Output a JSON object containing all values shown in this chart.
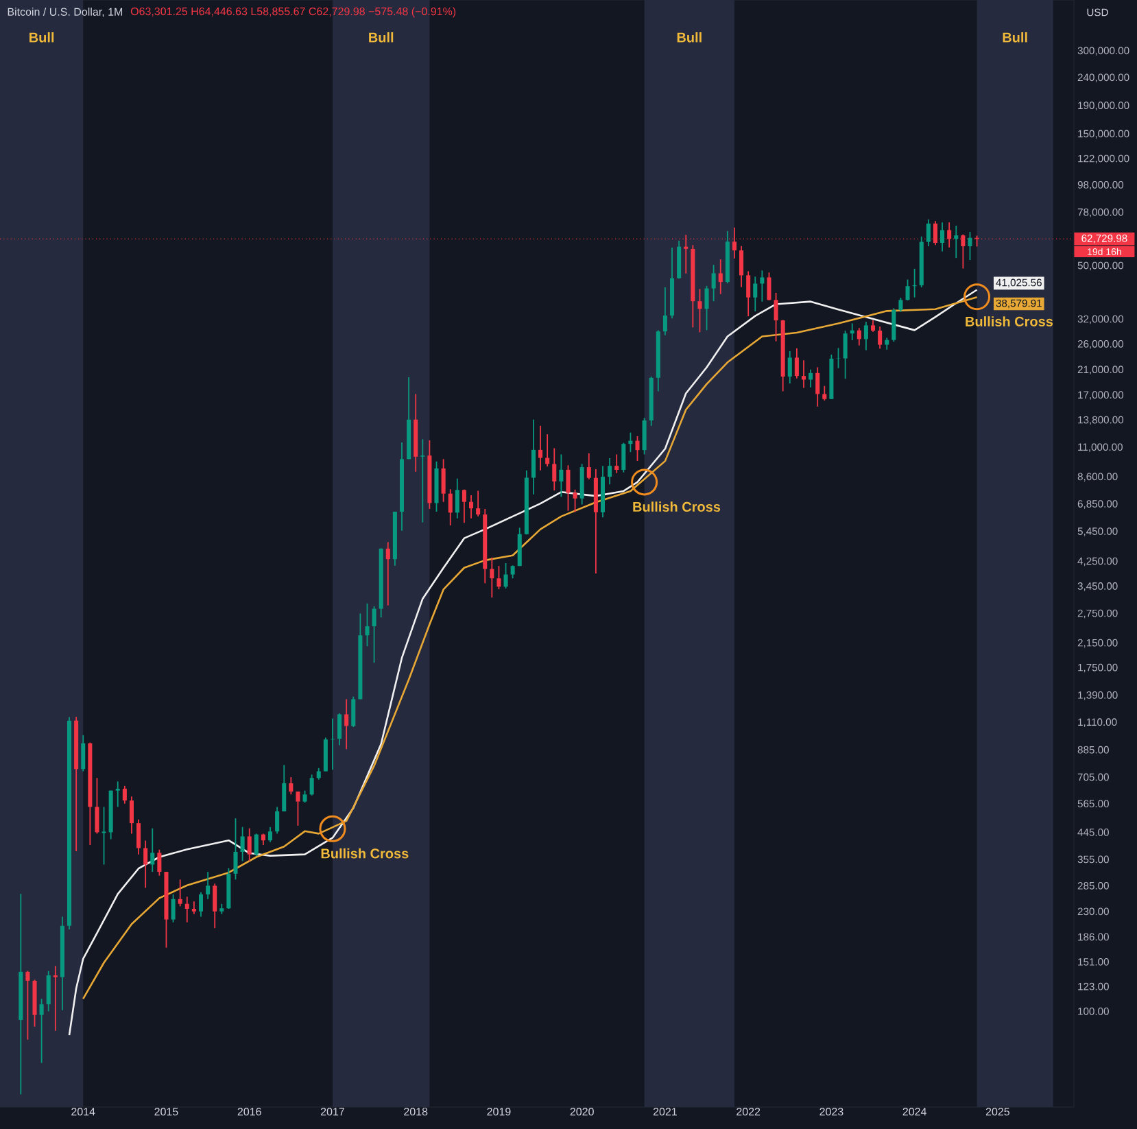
{
  "chart_data": {
    "type": "candlestick",
    "title": "Bitcoin / U.S. Dollar, 1M",
    "subtitle": "O63,301.25 H64,446.63 L58,855.67 C62,729.98 −575.48 (−0.91%)",
    "ylabel": "USD",
    "log": true,
    "xlim": [
      "2013-01",
      "2025-12"
    ],
    "ylim": [
      45,
      460000
    ],
    "xticks": [
      {
        "value": "2014-01",
        "label": "2014"
      },
      {
        "value": "2015-01",
        "label": "2015"
      },
      {
        "value": "2016-01",
        "label": "2016"
      },
      {
        "value": "2017-01",
        "label": "2017"
      },
      {
        "value": "2018-01",
        "label": "2018"
      },
      {
        "value": "2019-01",
        "label": "2019"
      },
      {
        "value": "2020-01",
        "label": "2020"
      },
      {
        "value": "2021-01",
        "label": "2021"
      },
      {
        "value": "2022-01",
        "label": "2022"
      },
      {
        "value": "2023-01",
        "label": "2023"
      },
      {
        "value": "2024-01",
        "label": "2024"
      },
      {
        "value": "2025-01",
        "label": "2025"
      }
    ],
    "yticks": [
      {
        "value": 100,
        "label": "100.00"
      },
      {
        "value": 123,
        "label": "123.00"
      },
      {
        "value": 151,
        "label": "151.00"
      },
      {
        "value": 186,
        "label": "186.00"
      },
      {
        "value": 230,
        "label": "230.00"
      },
      {
        "value": 285,
        "label": "285.00"
      },
      {
        "value": 355,
        "label": "355.00"
      },
      {
        "value": 445,
        "label": "445.00"
      },
      {
        "value": 565,
        "label": "565.00"
      },
      {
        "value": 705,
        "label": "705.00"
      },
      {
        "value": 885,
        "label": "885.00"
      },
      {
        "value": 1110,
        "label": "1,110.00"
      },
      {
        "value": 1390,
        "label": "1,390.00"
      },
      {
        "value": 1750,
        "label": "1,750.00"
      },
      {
        "value": 2150,
        "label": "2,150.00"
      },
      {
        "value": 2750,
        "label": "2,750.00"
      },
      {
        "value": 3450,
        "label": "3,450.00"
      },
      {
        "value": 4250,
        "label": "4,250.00"
      },
      {
        "value": 5450,
        "label": "5,450.00"
      },
      {
        "value": 6850,
        "label": "6,850.00"
      },
      {
        "value": 8600,
        "label": "8,600.00"
      },
      {
        "value": 11000,
        "label": "11,000.00"
      },
      {
        "value": 13800,
        "label": "13,800.00"
      },
      {
        "value": 17000,
        "label": "17,000.00"
      },
      {
        "value": 21000,
        "label": "21,000.00"
      },
      {
        "value": 26000,
        "label": "26,000.00"
      },
      {
        "value": 32000,
        "label": "32,000.00"
      },
      {
        "value": 50000,
        "label": "50,000.00"
      },
      {
        "value": 78000,
        "label": "78,000.00"
      },
      {
        "value": 98000,
        "label": "98,000.00"
      },
      {
        "value": 122000,
        "label": "122,000.00"
      },
      {
        "value": 150000,
        "label": "150,000.00"
      },
      {
        "value": 190000,
        "label": "190,000.00"
      },
      {
        "value": 240000,
        "label": "240,000.00"
      },
      {
        "value": 300000,
        "label": "300,000.00"
      }
    ],
    "x": [
      "2013-04",
      "2013-05",
      "2013-06",
      "2013-07",
      "2013-08",
      "2013-09",
      "2013-10",
      "2013-11",
      "2013-12",
      "2014-01",
      "2014-02",
      "2014-03",
      "2014-04",
      "2014-05",
      "2014-06",
      "2014-07",
      "2014-08",
      "2014-09",
      "2014-10",
      "2014-11",
      "2014-12",
      "2015-01",
      "2015-02",
      "2015-03",
      "2015-04",
      "2015-05",
      "2015-06",
      "2015-07",
      "2015-08",
      "2015-09",
      "2015-10",
      "2015-11",
      "2015-12",
      "2016-01",
      "2016-02",
      "2016-03",
      "2016-04",
      "2016-05",
      "2016-06",
      "2016-07",
      "2016-08",
      "2016-09",
      "2016-10",
      "2016-11",
      "2016-12",
      "2017-01",
      "2017-02",
      "2017-03",
      "2017-04",
      "2017-05",
      "2017-06",
      "2017-07",
      "2017-08",
      "2017-09",
      "2017-10",
      "2017-11",
      "2017-12",
      "2018-01",
      "2018-02",
      "2018-03",
      "2018-04",
      "2018-05",
      "2018-06",
      "2018-07",
      "2018-08",
      "2018-09",
      "2018-10",
      "2018-11",
      "2018-12",
      "2019-01",
      "2019-02",
      "2019-03",
      "2019-04",
      "2019-05",
      "2019-06",
      "2019-07",
      "2019-08",
      "2019-09",
      "2019-10",
      "2019-11",
      "2019-12",
      "2020-01",
      "2020-02",
      "2020-03",
      "2020-04",
      "2020-05",
      "2020-06",
      "2020-07",
      "2020-08",
      "2020-09",
      "2020-10",
      "2020-11",
      "2020-12",
      "2021-01",
      "2021-02",
      "2021-03",
      "2021-04",
      "2021-05",
      "2021-06",
      "2021-07",
      "2021-08",
      "2021-09",
      "2021-10",
      "2021-11",
      "2021-12",
      "2022-01",
      "2022-02",
      "2022-03",
      "2022-04",
      "2022-05",
      "2022-06",
      "2022-07",
      "2022-08",
      "2022-09",
      "2022-10",
      "2022-11",
      "2022-12",
      "2023-01",
      "2023-02",
      "2023-03",
      "2023-04",
      "2023-05",
      "2023-06",
      "2023-07",
      "2023-08",
      "2023-09",
      "2023-10",
      "2023-11",
      "2023-12",
      "2024-01",
      "2024-02",
      "2024-03",
      "2024-04",
      "2024-05",
      "2024-06",
      "2024-07",
      "2024-08",
      "2024-09",
      "2024-10"
    ],
    "ohlc": [
      [
        93,
        266,
        50,
        139
      ],
      [
        139,
        140,
        79,
        129
      ],
      [
        129,
        130,
        88,
        97
      ],
      [
        97,
        111,
        65,
        106
      ],
      [
        106,
        140,
        100,
        135
      ],
      [
        135,
        146,
        85,
        133
      ],
      [
        133,
        220,
        101,
        204
      ],
      [
        204,
        1163,
        198,
        1129
      ],
      [
        1129,
        1165,
        380,
        754
      ],
      [
        754,
        1000,
        740,
        935
      ],
      [
        935,
        940,
        400,
        550
      ],
      [
        550,
        700,
        440,
        445
      ],
      [
        445,
        550,
        340,
        445
      ],
      [
        445,
        630,
        420,
        630
      ],
      [
        630,
        680,
        550,
        640
      ],
      [
        640,
        655,
        565,
        580
      ],
      [
        580,
        600,
        440,
        480
      ],
      [
        480,
        495,
        370,
        390
      ],
      [
        390,
        415,
        280,
        340
      ],
      [
        340,
        460,
        320,
        375
      ],
      [
        375,
        385,
        310,
        320
      ],
      [
        320,
        320,
        170,
        215
      ],
      [
        215,
        265,
        210,
        255
      ],
      [
        255,
        300,
        240,
        245
      ],
      [
        245,
        260,
        210,
        235
      ],
      [
        235,
        250,
        225,
        230
      ],
      [
        230,
        270,
        220,
        265
      ],
      [
        265,
        320,
        255,
        285
      ],
      [
        285,
        290,
        200,
        230
      ],
      [
        230,
        245,
        225,
        236
      ],
      [
        236,
        330,
        235,
        315
      ],
      [
        315,
        500,
        300,
        378
      ],
      [
        378,
        465,
        350,
        430
      ],
      [
        430,
        460,
        350,
        370
      ],
      [
        370,
        440,
        365,
        437
      ],
      [
        437,
        440,
        400,
        416
      ],
      [
        416,
        465,
        410,
        448
      ],
      [
        448,
        550,
        440,
        530
      ],
      [
        530,
        780,
        530,
        670
      ],
      [
        670,
        705,
        610,
        625
      ],
      [
        625,
        625,
        470,
        575
      ],
      [
        575,
        630,
        570,
        610
      ],
      [
        610,
        720,
        605,
        700
      ],
      [
        700,
        760,
        690,
        740
      ],
      [
        740,
        980,
        740,
        965
      ],
      [
        965,
        1150,
        750,
        970
      ],
      [
        970,
        1200,
        920,
        1190
      ],
      [
        1190,
        1350,
        890,
        1080
      ],
      [
        1080,
        1380,
        1070,
        1350
      ],
      [
        1350,
        2760,
        1350,
        2300
      ],
      [
        2300,
        3000,
        2100,
        2480
      ],
      [
        2480,
        2930,
        1830,
        2870
      ],
      [
        2870,
        4750,
        2670,
        4740
      ],
      [
        4740,
        5000,
        2950,
        4340
      ],
      [
        4340,
        6450,
        4110,
        6450
      ],
      [
        6450,
        11500,
        5500,
        10000
      ],
      [
        10000,
        19800,
        10000,
        13900
      ],
      [
        13900,
        17200,
        9000,
        10200
      ],
      [
        10200,
        11800,
        5900,
        10300
      ],
      [
        10300,
        11700,
        6600,
        6930
      ],
      [
        6930,
        9800,
        6450,
        9250
      ],
      [
        9250,
        10000,
        7000,
        7500
      ],
      [
        7500,
        7780,
        5750,
        6400
      ],
      [
        6400,
        8500,
        6100,
        7730
      ],
      [
        7730,
        7760,
        5880,
        7000
      ],
      [
        7000,
        7400,
        6100,
        6630
      ],
      [
        6630,
        7680,
        6200,
        6300
      ],
      [
        6300,
        6600,
        3550,
        4000
      ],
      [
        4000,
        4400,
        3150,
        3700
      ],
      [
        3700,
        4100,
        3380,
        3450
      ],
      [
        3450,
        4200,
        3400,
        3820
      ],
      [
        3820,
        4120,
        3700,
        4100
      ],
      [
        4100,
        5640,
        4100,
        5350
      ],
      [
        5350,
        9100,
        5330,
        8560
      ],
      [
        8560,
        13900,
        7450,
        10800
      ],
      [
        10800,
        13200,
        9100,
        10100
      ],
      [
        10100,
        12300,
        9400,
        9600
      ],
      [
        9600,
        10950,
        7700,
        8300
      ],
      [
        8300,
        10400,
        7300,
        9150
      ],
      [
        9150,
        9500,
        6500,
        7550
      ],
      [
        7550,
        7750,
        6430,
        7200
      ],
      [
        7200,
        9600,
        6850,
        9350
      ],
      [
        9350,
        10500,
        8450,
        8550
      ],
      [
        8550,
        9200,
        3850,
        6420
      ],
      [
        6420,
        9450,
        6150,
        8630
      ],
      [
        8630,
        10070,
        8100,
        9450
      ],
      [
        9450,
        10400,
        8900,
        9140
      ],
      [
        9140,
        11450,
        8950,
        11350
      ],
      [
        11350,
        12470,
        10600,
        11650
      ],
      [
        11650,
        12100,
        9850,
        10780
      ],
      [
        10780,
        14100,
        10400,
        13800
      ],
      [
        13800,
        19900,
        13200,
        19700
      ],
      [
        19700,
        29300,
        17600,
        29000
      ],
      [
        29000,
        41950,
        28100,
        33100
      ],
      [
        33100,
        58350,
        32300,
        45200
      ],
      [
        45200,
        61800,
        45000,
        58800
      ],
      [
        58800,
        64850,
        47000,
        57700
      ],
      [
        57700,
        59600,
        30000,
        37300
      ],
      [
        37300,
        41300,
        28800,
        35000
      ],
      [
        35000,
        42400,
        29300,
        41500
      ],
      [
        41500,
        50500,
        37300,
        47100
      ],
      [
        47100,
        52900,
        39600,
        43800
      ],
      [
        43800,
        67000,
        43300,
        61300
      ],
      [
        61300,
        69000,
        53300,
        57000
      ],
      [
        57000,
        59100,
        42000,
        46300
      ],
      [
        46300,
        47900,
        32900,
        38500
      ],
      [
        38500,
        45800,
        34300,
        43200
      ],
      [
        43200,
        48200,
        37200,
        45500
      ],
      [
        45500,
        47400,
        37600,
        37700
      ],
      [
        37700,
        40000,
        26700,
        31800
      ],
      [
        31800,
        31900,
        17600,
        19900
      ],
      [
        19900,
        24600,
        18800,
        23300
      ],
      [
        23300,
        25200,
        19600,
        20000
      ],
      [
        20000,
        22800,
        18100,
        19400
      ],
      [
        19400,
        21100,
        18200,
        20500
      ],
      [
        20500,
        21500,
        15500,
        17200
      ],
      [
        17200,
        18400,
        16300,
        16500
      ],
      [
        16500,
        23900,
        16500,
        23100
      ],
      [
        23100,
        25250,
        21350,
        23150
      ],
      [
        23150,
        29200,
        19550,
        28500
      ],
      [
        28500,
        31000,
        26950,
        29250
      ],
      [
        29250,
        29850,
        25800,
        27200
      ],
      [
        27200,
        31400,
        24800,
        30500
      ],
      [
        30500,
        31800,
        28900,
        29200
      ],
      [
        29200,
        30200,
        25100,
        25950
      ],
      [
        25950,
        27500,
        24900,
        27000
      ],
      [
        27000,
        35200,
        26600,
        34650
      ],
      [
        34650,
        38400,
        34100,
        37700
      ],
      [
        37700,
        44700,
        37600,
        42300
      ],
      [
        42300,
        48900,
        38500,
        42600
      ],
      [
        42600,
        64000,
        41900,
        61200
      ],
      [
        61200,
        73800,
        59000,
        71300
      ],
      [
        71300,
        72800,
        59600,
        60700
      ],
      [
        60700,
        72000,
        56500,
        67500
      ],
      [
        67500,
        72000,
        58400,
        62700
      ],
      [
        62700,
        70000,
        53500,
        64600
      ],
      [
        64600,
        65100,
        49000,
        59000
      ],
      [
        59000,
        66500,
        52600,
        63301.25
      ],
      [
        63301.25,
        64446.63,
        58855.67,
        62729.98
      ]
    ],
    "series": [
      {
        "type": "line",
        "color": "#f0f0f0",
        "x": [
          "2013-11",
          "2013-12",
          "2014-01",
          "2014-03",
          "2014-06",
          "2014-09",
          "2014-12",
          "2015-04",
          "2015-10",
          "2016-01",
          "2016-04",
          "2016-09",
          "2017-01",
          "2017-04",
          "2017-08",
          "2017-11",
          "2018-02",
          "2018-05",
          "2018-08",
          "2018-11",
          "2019-03",
          "2019-07",
          "2019-10",
          "2019-12",
          "2020-03",
          "2020-07",
          "2020-09",
          "2021-01",
          "2021-04",
          "2021-07",
          "2021-10",
          "2022-02",
          "2022-05",
          "2022-10",
          "2023-02",
          "2023-06",
          "2024-01",
          "2024-04",
          "2024-07",
          "2024-10"
        ],
        "values": [
          82,
          121,
          155,
          192,
          266,
          329,
          362,
          386,
          416,
          374,
          366,
          370,
          425,
          545,
          929,
          1905,
          3120,
          4035,
          5170,
          5570,
          6200,
          6900,
          7600,
          7500,
          7350,
          7660,
          8250,
          10900,
          17300,
          21500,
          27800,
          33000,
          36400,
          37200,
          34800,
          32700,
          29300,
          32700,
          36700,
          41025.56
        ],
        "value_labels": [
          null,
          null,
          null,
          null,
          null,
          null,
          null,
          null,
          null,
          null,
          null,
          null,
          null,
          null,
          null,
          null,
          null,
          null,
          null,
          null,
          null,
          null,
          null,
          null,
          null,
          null,
          null,
          null,
          null,
          null,
          null,
          null,
          null,
          null,
          null,
          null,
          null,
          null,
          null,
          "41,025.56"
        ]
      },
      {
        "type": "line",
        "color": "#e8a835",
        "x": [
          "2014-01",
          "2014-04",
          "2014-08",
          "2014-12",
          "2015-04",
          "2015-10",
          "2016-02",
          "2016-06",
          "2016-09",
          "2016-11",
          "2017-03",
          "2017-07",
          "2017-12",
          "2018-03",
          "2018-05",
          "2018-08",
          "2018-11",
          "2019-03",
          "2019-07",
          "2019-10",
          "2020-03",
          "2020-08",
          "2021-01",
          "2021-04",
          "2021-07",
          "2021-10",
          "2022-03",
          "2022-08",
          "2023-02",
          "2023-09",
          "2024-04",
          "2024-10"
        ],
        "values": [
          111,
          150,
          207,
          257,
          286,
          318,
          362,
          395,
          449,
          440,
          489,
          775,
          1590,
          2520,
          3370,
          4040,
          4300,
          4480,
          5570,
          6200,
          6980,
          7660,
          9840,
          15100,
          18700,
          22400,
          27800,
          28700,
          31000,
          34400,
          34900,
          38579.91
        ],
        "value_labels": [
          null,
          null,
          null,
          null,
          null,
          null,
          null,
          null,
          null,
          null,
          null,
          null,
          null,
          null,
          null,
          null,
          null,
          null,
          null,
          null,
          null,
          null,
          null,
          null,
          null,
          null,
          null,
          null,
          null,
          null,
          null,
          "38,579.91"
        ]
      }
    ],
    "ref_lines": [
      {
        "axis": "y",
        "value": 62729.98,
        "label": "62,729.98",
        "color": "#f23645",
        "line_style": "dotted"
      }
    ],
    "bands": [
      {
        "axis": "x",
        "from": "2013-01",
        "to": "2014-01",
        "label": "Bull",
        "color": "#262a3e"
      },
      {
        "axis": "x",
        "from": "2017-01",
        "to": "2018-03",
        "label": "Bull",
        "color": "#262a3e"
      },
      {
        "axis": "x",
        "from": "2020-10",
        "to": "2021-11",
        "label": "Bull",
        "color": "#262a3e"
      },
      {
        "axis": "x",
        "from": "2024-10",
        "to": "2025-09",
        "label": "Bull",
        "color": "#262a3e"
      }
    ],
    "annotations": [
      {
        "text": "Bullish Cross",
        "x": "2017-01",
        "y": 458
      },
      {
        "text": "Bullish Cross",
        "x": "2020-10",
        "y": 8250
      },
      {
        "text": "Bullish Cross",
        "x": "2024-10",
        "y": 38700
      },
      "19d 16h"
    ]
  }
}
